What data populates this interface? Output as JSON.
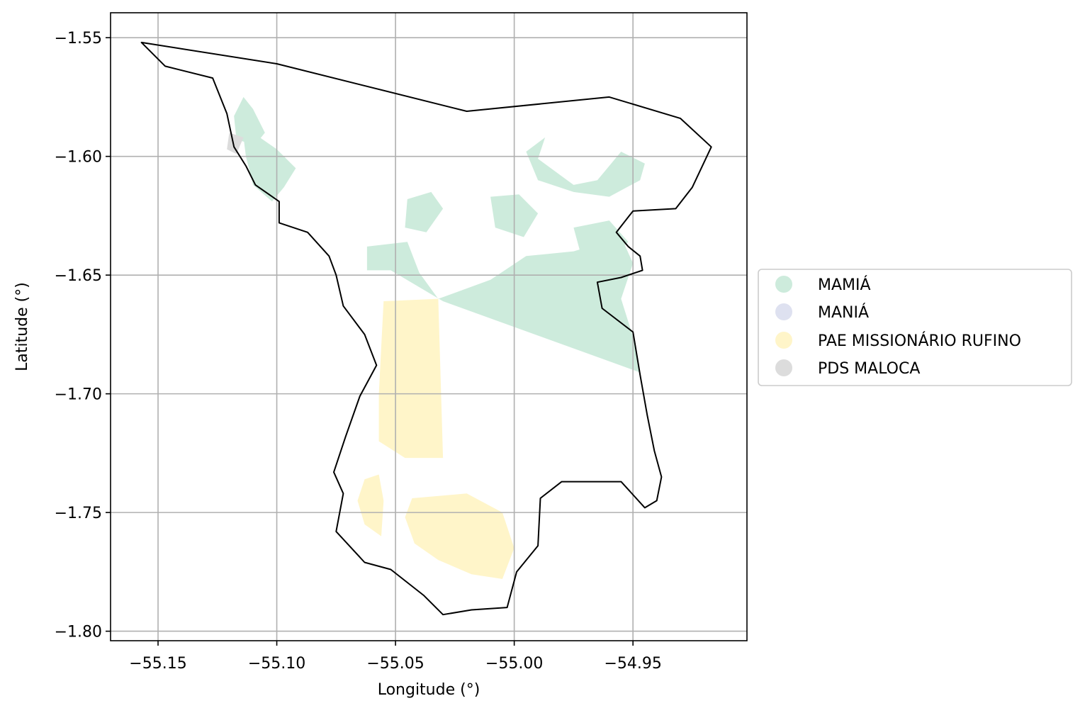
{
  "chart_data": {
    "type": "map",
    "xlabel": "Longitude (°)",
    "ylabel": "Latitude (°)",
    "xlim": [
      -55.17,
      -54.902
    ],
    "ylim": [
      -1.804,
      -1.5395
    ],
    "xticks": [
      -55.15,
      -55.1,
      -55.05,
      -55.0,
      -54.95
    ],
    "yticks": [
      -1.55,
      -1.6,
      -1.65,
      -1.7,
      -1.75,
      -1.8
    ],
    "xtick_labels": [
      "−55.15",
      "−55.10",
      "−55.05",
      "−55.00",
      "−54.95"
    ],
    "ytick_labels": [
      "−1.55",
      "−1.60",
      "−1.65",
      "−1.70",
      "−1.75",
      "−1.80"
    ],
    "grid": true,
    "legend_position": "right",
    "colors": {
      "boundary": "#000000",
      "grid": "#b0b0b0",
      "MAMIÁ": "#cdebdc",
      "MANIÁ": "#dee1f0",
      "PAE MISSIONÁRIO RUFINO": "#fff5c9",
      "PDS MALOCA": "#dcdcdc"
    },
    "legend": [
      "MAMIÁ",
      "MANIÁ",
      "PAE MISSIONÁRIO RUFINO",
      "PDS MALOCA"
    ],
    "boundary": [
      [
        -55.157,
        -1.552
      ],
      [
        -55.1,
        -1.561
      ],
      [
        -55.02,
        -1.581
      ],
      [
        -54.96,
        -1.575
      ],
      [
        -54.93,
        -1.584
      ],
      [
        -54.917,
        -1.596
      ],
      [
        -54.925,
        -1.613
      ],
      [
        -54.932,
        -1.622
      ],
      [
        -54.95,
        -1.623
      ],
      [
        -54.957,
        -1.632
      ],
      [
        -54.952,
        -1.638
      ],
      [
        -54.947,
        -1.642
      ],
      [
        -54.946,
        -1.648
      ],
      [
        -54.955,
        -1.651
      ],
      [
        -54.965,
        -1.653
      ],
      [
        -54.963,
        -1.664
      ],
      [
        -54.95,
        -1.674
      ],
      [
        -54.947,
        -1.692
      ],
      [
        -54.944,
        -1.709
      ],
      [
        -54.941,
        -1.724
      ],
      [
        -54.938,
        -1.735
      ],
      [
        -54.94,
        -1.745
      ],
      [
        -54.945,
        -1.748
      ],
      [
        -54.955,
        -1.737
      ],
      [
        -54.98,
        -1.737
      ],
      [
        -54.989,
        -1.744
      ],
      [
        -54.99,
        -1.764
      ],
      [
        -54.999,
        -1.775
      ],
      [
        -55.003,
        -1.79
      ],
      [
        -55.018,
        -1.791
      ],
      [
        -55.03,
        -1.793
      ],
      [
        -55.038,
        -1.785
      ],
      [
        -55.052,
        -1.774
      ],
      [
        -55.063,
        -1.771
      ],
      [
        -55.075,
        -1.758
      ],
      [
        -55.072,
        -1.742
      ],
      [
        -55.076,
        -1.733
      ],
      [
        -55.071,
        -1.718
      ],
      [
        -55.065,
        -1.701
      ],
      [
        -55.058,
        -1.688
      ],
      [
        -55.063,
        -1.675
      ],
      [
        -55.072,
        -1.663
      ],
      [
        -55.075,
        -1.65
      ],
      [
        -55.078,
        -1.642
      ],
      [
        -55.087,
        -1.632
      ],
      [
        -55.099,
        -1.628
      ],
      [
        -55.099,
        -1.619
      ],
      [
        -55.109,
        -1.612
      ],
      [
        -55.113,
        -1.604
      ],
      [
        -55.118,
        -1.596
      ],
      [
        -55.121,
        -1.582
      ],
      [
        -55.127,
        -1.567
      ],
      [
        -55.147,
        -1.562
      ],
      [
        -55.157,
        -1.552
      ]
    ],
    "regions": {
      "MAMIÁ": [
        [
          [
            -55.11,
            -1.59
          ],
          [
            -55.1,
            -1.597
          ],
          [
            -55.092,
            -1.605
          ],
          [
            -55.097,
            -1.613
          ],
          [
            -55.102,
            -1.619
          ],
          [
            -55.11,
            -1.612
          ],
          [
            -55.113,
            -1.6
          ],
          [
            -55.114,
            -1.592
          ]
        ],
        [
          [
            -55.105,
            -1.59
          ],
          [
            -55.11,
            -1.58
          ],
          [
            -55.114,
            -1.575
          ],
          [
            -55.118,
            -1.583
          ],
          [
            -55.117,
            -1.593
          ],
          [
            -55.109,
            -1.595
          ]
        ],
        [
          [
            -55.062,
            -1.638
          ],
          [
            -55.045,
            -1.636
          ],
          [
            -55.04,
            -1.649
          ],
          [
            -55.032,
            -1.66
          ],
          [
            -55.01,
            -1.652
          ],
          [
            -54.995,
            -1.642
          ],
          [
            -54.975,
            -1.64
          ],
          [
            -54.955,
            -1.634
          ],
          [
            -54.95,
            -1.645
          ],
          [
            -54.955,
            -1.66
          ],
          [
            -54.95,
            -1.676
          ],
          [
            -54.947,
            -1.691
          ],
          [
            -55.03,
            -1.661
          ],
          [
            -55.052,
            -1.648
          ],
          [
            -55.062,
            -1.648
          ]
        ],
        [
          [
            -55.045,
            -1.618
          ],
          [
            -55.035,
            -1.615
          ],
          [
            -55.03,
            -1.622
          ],
          [
            -55.037,
            -1.632
          ],
          [
            -55.046,
            -1.63
          ]
        ],
        [
          [
            -55.01,
            -1.617
          ],
          [
            -54.998,
            -1.616
          ],
          [
            -54.99,
            -1.624
          ],
          [
            -54.996,
            -1.634
          ],
          [
            -55.008,
            -1.63
          ]
        ],
        [
          [
            -54.987,
            -1.592
          ],
          [
            -54.99,
            -1.601
          ],
          [
            -54.975,
            -1.612
          ],
          [
            -54.965,
            -1.61
          ],
          [
            -54.955,
            -1.598
          ],
          [
            -54.945,
            -1.603
          ],
          [
            -54.947,
            -1.61
          ],
          [
            -54.96,
            -1.617
          ],
          [
            -54.975,
            -1.615
          ],
          [
            -54.99,
            -1.61
          ],
          [
            -54.995,
            -1.598
          ]
        ],
        [
          [
            -54.975,
            -1.63
          ],
          [
            -54.96,
            -1.627
          ],
          [
            -54.952,
            -1.636
          ],
          [
            -54.96,
            -1.644
          ],
          [
            -54.972,
            -1.641
          ]
        ]
      ],
      "MANIÁ": [
        [
          [
            -55.064,
            -1.744
          ],
          [
            -55.06,
            -1.74
          ],
          [
            -55.057,
            -1.746
          ],
          [
            -55.062,
            -1.749
          ]
        ]
      ],
      "PAE MISSIONÁRIO RUFINO": [
        [
          [
            -55.055,
            -1.661
          ],
          [
            -55.032,
            -1.66
          ],
          [
            -55.03,
            -1.727
          ],
          [
            -55.046,
            -1.727
          ],
          [
            -55.057,
            -1.72
          ],
          [
            -55.057,
            -1.7
          ],
          [
            -55.056,
            -1.68
          ]
        ],
        [
          [
            -55.063,
            -1.736
          ],
          [
            -55.057,
            -1.734
          ],
          [
            -55.055,
            -1.745
          ],
          [
            -55.056,
            -1.76
          ],
          [
            -55.063,
            -1.755
          ],
          [
            -55.066,
            -1.745
          ]
        ],
        [
          [
            -55.043,
            -1.744
          ],
          [
            -55.02,
            -1.742
          ],
          [
            -55.005,
            -1.75
          ],
          [
            -55.0,
            -1.765
          ],
          [
            -55.005,
            -1.778
          ],
          [
            -55.018,
            -1.776
          ],
          [
            -55.032,
            -1.77
          ],
          [
            -55.042,
            -1.763
          ],
          [
            -55.046,
            -1.752
          ]
        ]
      ],
      "PDS MALOCA": [
        [
          [
            -55.114,
            -1.592
          ],
          [
            -55.12,
            -1.59
          ],
          [
            -55.121,
            -1.597
          ],
          [
            -55.117,
            -1.599
          ]
        ]
      ]
    }
  }
}
